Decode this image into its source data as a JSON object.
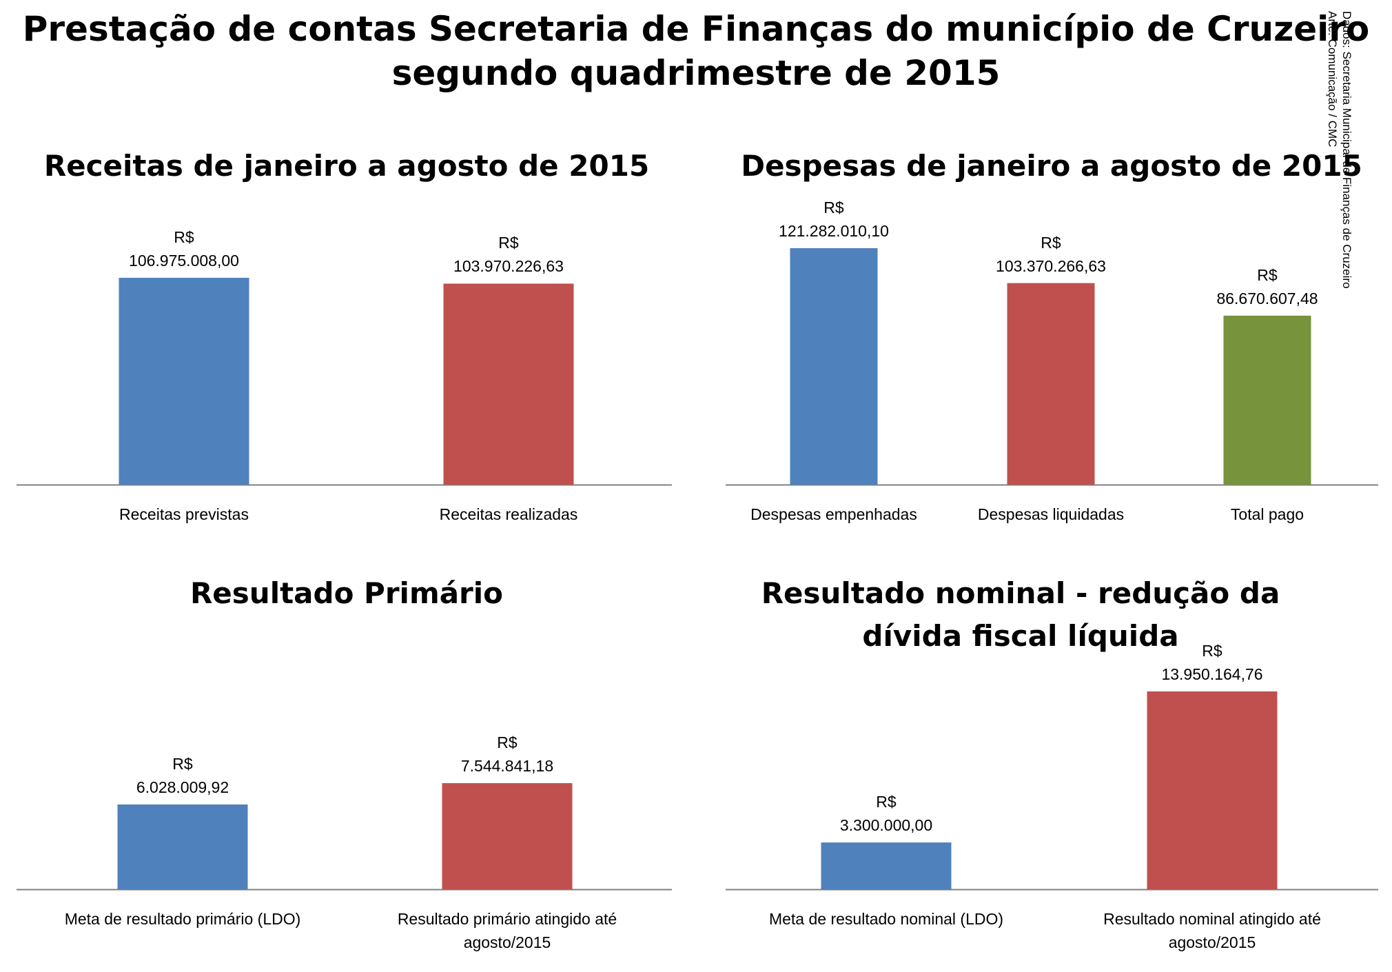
{
  "page": {
    "title_lines": [
      "Prestação de contas Secretaria de Finanças do município de Cruzeiro",
      "segundo quadrimestre de 2015"
    ],
    "credits": [
      "Dados: Secretaria Municipal de Finanças de Cruzeiro",
      "Arte: Comunicação / CMC"
    ]
  },
  "chart_data": [
    {
      "type": "bar",
      "title_lines": [
        "Receitas de janeiro a agosto de 2015"
      ],
      "categories": [
        [
          "Receitas previstas"
        ],
        [
          "Receitas realizadas"
        ]
      ],
      "values": [
        106975008.0,
        103970226.63
      ],
      "value_labels": [
        [
          "R$",
          "106.975.008,00"
        ],
        [
          "R$",
          "103.970.226,63"
        ]
      ],
      "colors": [
        "#4f81bd",
        "#c0504d"
      ]
    },
    {
      "type": "bar",
      "title_lines": [
        "Despesas de janeiro a agosto de 2015"
      ],
      "categories": [
        [
          "Despesas empenhadas"
        ],
        [
          "Despesas liquidadas"
        ],
        [
          "Total pago"
        ]
      ],
      "values": [
        121282010.1,
        103370266.63,
        86670607.48
      ],
      "value_labels": [
        [
          "R$",
          "121.282.010,10"
        ],
        [
          "R$",
          "103.370.266,63"
        ],
        [
          "R$",
          "86.670.607,48"
        ]
      ],
      "colors": [
        "#4f81bd",
        "#c0504d",
        "#77933c"
      ]
    },
    {
      "type": "bar",
      "title_lines": [
        "Resultado Primário"
      ],
      "categories": [
        [
          "Meta de resultado primário (LDO)"
        ],
        [
          "Resultado primário atingido até",
          "agosto/2015"
        ]
      ],
      "values": [
        6028009.92,
        7544841.18
      ],
      "value_labels": [
        [
          "R$",
          "6.028.009,92"
        ],
        [
          "R$",
          "7.544.841,18"
        ]
      ],
      "colors": [
        "#4f81bd",
        "#c0504d"
      ]
    },
    {
      "type": "bar",
      "title_lines": [
        "Resultado nominal - redução da",
        "dívida fiscal líquida"
      ],
      "categories": [
        [
          "Meta de resultado nominal (LDO)"
        ],
        [
          "Resultado nominal atingido até",
          "agosto/2015"
        ]
      ],
      "values": [
        3300000.0,
        13950164.76
      ],
      "value_labels": [
        [
          "R$",
          "3.300.000,00"
        ],
        [
          "R$",
          "13.950.164,76"
        ]
      ],
      "colors": [
        "#4f81bd",
        "#c0504d"
      ]
    }
  ]
}
